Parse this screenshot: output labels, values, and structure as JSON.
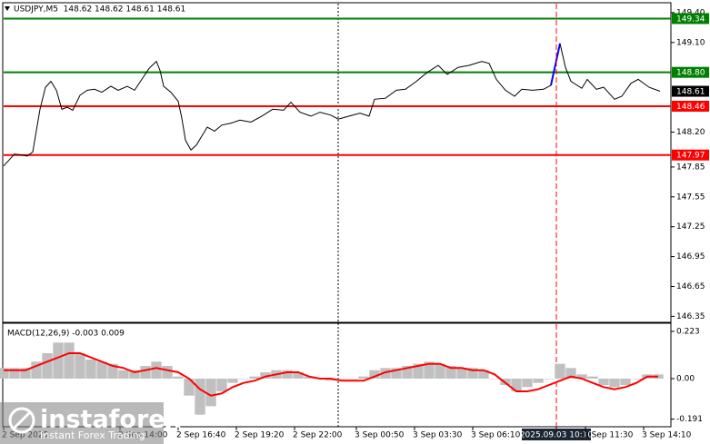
{
  "chart_data": [
    {
      "type": "line",
      "title": "USDJPY,M5  148.62 148.62 148.61 148.61",
      "xlim": [
        0,
        367
      ],
      "ylim": [
        146.29,
        149.49
      ],
      "yticks": [
        {
          "value": 149.4,
          "label": "149.40"
        },
        {
          "value": 149.1,
          "label": "149.10"
        },
        {
          "value": 148.2,
          "label": "148.20"
        },
        147.85,
        147.55,
        147.25,
        146.95,
        146.65,
        146.35
      ],
      "series": [
        {
          "color": "#000000",
          "x": [
            0,
            6,
            13,
            16,
            20,
            23,
            26,
            29,
            32,
            35,
            38,
            42,
            46,
            50,
            54,
            59,
            63,
            68,
            72,
            76,
            80,
            84,
            86,
            88,
            92,
            96,
            98,
            100,
            103,
            106,
            109,
            112,
            116,
            120,
            125,
            130,
            136,
            142,
            148,
            154,
            158,
            163,
            169,
            174,
            180,
            184,
            190,
            196,
            201,
            204,
            210,
            216,
            221,
            227,
            233,
            239,
            244,
            250,
            256,
            263,
            267,
            271,
            276,
            281,
            285,
            291,
            297,
            301,
            306,
            309,
            312,
            318,
            321,
            326,
            330,
            336,
            340,
            345,
            349,
            355,
            361
          ],
          "values": [
            147.86,
            147.98,
            147.96,
            148.0,
            148.43,
            148.65,
            148.71,
            148.62,
            148.43,
            148.45,
            148.42,
            148.57,
            148.62,
            148.63,
            148.6,
            148.66,
            148.62,
            148.66,
            148.62,
            148.73,
            148.84,
            148.91,
            148.82,
            148.66,
            148.6,
            148.51,
            148.34,
            148.12,
            148.02,
            148.07,
            148.16,
            148.25,
            148.21,
            148.27,
            148.29,
            148.32,
            148.3,
            148.36,
            148.43,
            148.42,
            148.5,
            148.4,
            148.36,
            148.4,
            148.37,
            148.33,
            148.36,
            148.39,
            148.36,
            148.53,
            148.54,
            148.62,
            148.63,
            148.71,
            148.8,
            148.87,
            148.78,
            148.85,
            148.87,
            148.91,
            148.89,
            148.73,
            148.62,
            148.56,
            148.63,
            148.62,
            148.63,
            148.67,
            149.09,
            148.85,
            148.71,
            148.64,
            148.73,
            148.63,
            148.65,
            148.53,
            148.56,
            148.69,
            148.73,
            148.65,
            148.61
          ]
        },
        {
          "color": "#0000ff",
          "x": [
            301,
            306
          ],
          "values": [
            148.67,
            149.09
          ]
        }
      ],
      "levels": [
        {
          "value": 149.34,
          "label": "149.34",
          "color": "#008000"
        },
        {
          "value": 148.8,
          "label": "148.80",
          "color": "#008000"
        },
        {
          "value": 148.46,
          "label": "148.46",
          "color": "#ff0000"
        },
        {
          "value": 147.97,
          "label": "147.97",
          "color": "#ff0000"
        }
      ],
      "last_price": {
        "value": 148.61,
        "label": "148.61",
        "color": "#000000"
      }
    },
    {
      "type": "bar",
      "title": "MACD(12,26,9) -0.003 0.009",
      "xlim": [
        0,
        367
      ],
      "ylim": [
        -0.227,
        0.257
      ],
      "yticks": [
        0.223,
        {
          "value": 0,
          "label": "0.00"
        },
        -0.191
      ],
      "xticks": [
        {
          "value": 0,
          "label": "2 Sep 2025"
        },
        {
          "value": 64,
          "label": "2 Sep 14:00"
        },
        {
          "value": 96,
          "label": "2 Sep 16:40"
        },
        {
          "value": 128,
          "label": "2 Sep 19:20"
        },
        {
          "value": 160,
          "label": "2 Sep 22:00"
        },
        {
          "value": 194,
          "label": "3 Sep 00:50"
        },
        {
          "value": 226,
          "label": "3 Sep 03:30"
        },
        {
          "value": 258,
          "label": "3 Sep 06:10"
        },
        {
          "value": 304,
          "label": "2025.09.03 10:10",
          "highlight": true
        },
        {
          "value": 320,
          "label": "3 Sep 11:30"
        },
        {
          "value": 352,
          "label": "3 Sep 14:10"
        }
      ],
      "series": [
        {
          "type": "bar",
          "color": "#c0c0c0",
          "x": [
            0,
            6,
            12,
            18,
            24,
            30,
            36,
            42,
            48,
            54,
            60,
            66,
            72,
            78,
            84,
            90,
            96,
            102,
            108,
            114,
            120,
            126,
            132,
            138,
            144,
            150,
            156,
            162,
            168,
            174,
            180,
            186,
            192,
            198,
            204,
            210,
            216,
            222,
            228,
            234,
            240,
            246,
            252,
            258,
            264,
            270,
            276,
            282,
            288,
            294,
            300,
            306,
            312,
            318,
            324,
            330,
            336,
            342,
            348,
            354,
            360
          ],
          "values": [
            0.05,
            0.05,
            0.05,
            0.08,
            0.12,
            0.17,
            0.17,
            0.12,
            0.09,
            0.08,
            0.07,
            0.04,
            0.04,
            0.06,
            0.08,
            0.06,
            0.01,
            -0.08,
            -0.17,
            -0.13,
            -0.06,
            -0.02,
            0.0,
            0.01,
            0.03,
            0.04,
            0.04,
            0.03,
            0.01,
            0.0,
            -0.01,
            0.0,
            0.0,
            0.01,
            0.04,
            0.05,
            0.05,
            0.06,
            0.07,
            0.08,
            0.07,
            0.06,
            0.05,
            0.05,
            0.04,
            0.0,
            -0.03,
            -0.06,
            -0.04,
            -0.02,
            0.0,
            0.07,
            0.05,
            0.02,
            0.01,
            -0.03,
            -0.04,
            -0.03,
            0.0,
            0.02,
            0.02
          ]
        },
        {
          "type": "line",
          "color": "#ff0000",
          "x": [
            0,
            6,
            12,
            18,
            24,
            30,
            36,
            42,
            48,
            54,
            60,
            66,
            72,
            78,
            84,
            90,
            96,
            102,
            108,
            114,
            120,
            126,
            132,
            138,
            144,
            150,
            156,
            162,
            168,
            174,
            180,
            186,
            192,
            198,
            204,
            210,
            216,
            222,
            228,
            234,
            240,
            246,
            252,
            258,
            264,
            270,
            276,
            282,
            288,
            294,
            300,
            306,
            312,
            318,
            324,
            330,
            336,
            342,
            348,
            354,
            360
          ],
          "values": [
            0.04,
            0.04,
            0.04,
            0.06,
            0.08,
            0.1,
            0.12,
            0.12,
            0.1,
            0.08,
            0.06,
            0.05,
            0.03,
            0.04,
            0.05,
            0.04,
            0.03,
            0.0,
            -0.05,
            -0.08,
            -0.07,
            -0.04,
            -0.02,
            -0.01,
            0.01,
            0.02,
            0.03,
            0.03,
            0.01,
            0.0,
            0.0,
            -0.01,
            -0.01,
            -0.01,
            0.01,
            0.03,
            0.04,
            0.05,
            0.06,
            0.07,
            0.07,
            0.05,
            0.05,
            0.04,
            0.04,
            0.02,
            -0.02,
            -0.06,
            -0.06,
            -0.05,
            -0.03,
            -0.01,
            0.01,
            0.0,
            -0.02,
            -0.04,
            -0.05,
            -0.04,
            -0.02,
            0.01,
            0.01
          ]
        }
      ]
    }
  ],
  "logo": {
    "name": "instaforex",
    "tagline": "Instant Forex Trading"
  }
}
